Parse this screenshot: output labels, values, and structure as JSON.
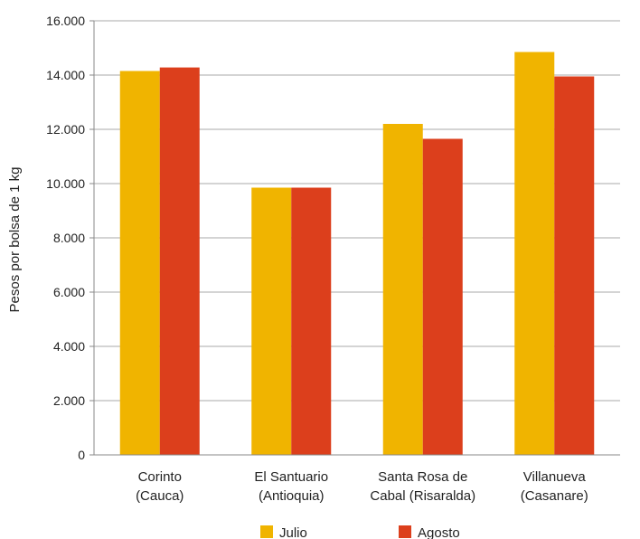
{
  "chart_data": {
    "type": "bar",
    "title": "",
    "xlabel": "",
    "ylabel": "Pesos por bolsa de 1 kg",
    "ylim": [
      0,
      16000
    ],
    "yticks": [
      0,
      2000,
      4000,
      6000,
      8000,
      10000,
      12000,
      14000,
      16000
    ],
    "ytick_labels": [
      "0",
      "2.000",
      "4.000",
      "6.000",
      "8.000",
      "10.000",
      "12.000",
      "14.000",
      "16.000"
    ],
    "grid": true,
    "legend_position": "bottom",
    "categories": [
      [
        "Corinto",
        "(Cauca)"
      ],
      [
        "El Santuario",
        "(Antioquia)"
      ],
      [
        "Santa Rosa de",
        "Cabal (Risaralda)"
      ],
      [
        "Villanueva",
        "(Casanare)"
      ]
    ],
    "series": [
      {
        "name": "Julio",
        "color": "#f0b400",
        "values": [
          14150,
          9850,
          12200,
          14850
        ]
      },
      {
        "name": "Agosto",
        "color": "#dc3f1c",
        "values": [
          14280,
          9850,
          11650,
          13950
        ]
      }
    ]
  }
}
